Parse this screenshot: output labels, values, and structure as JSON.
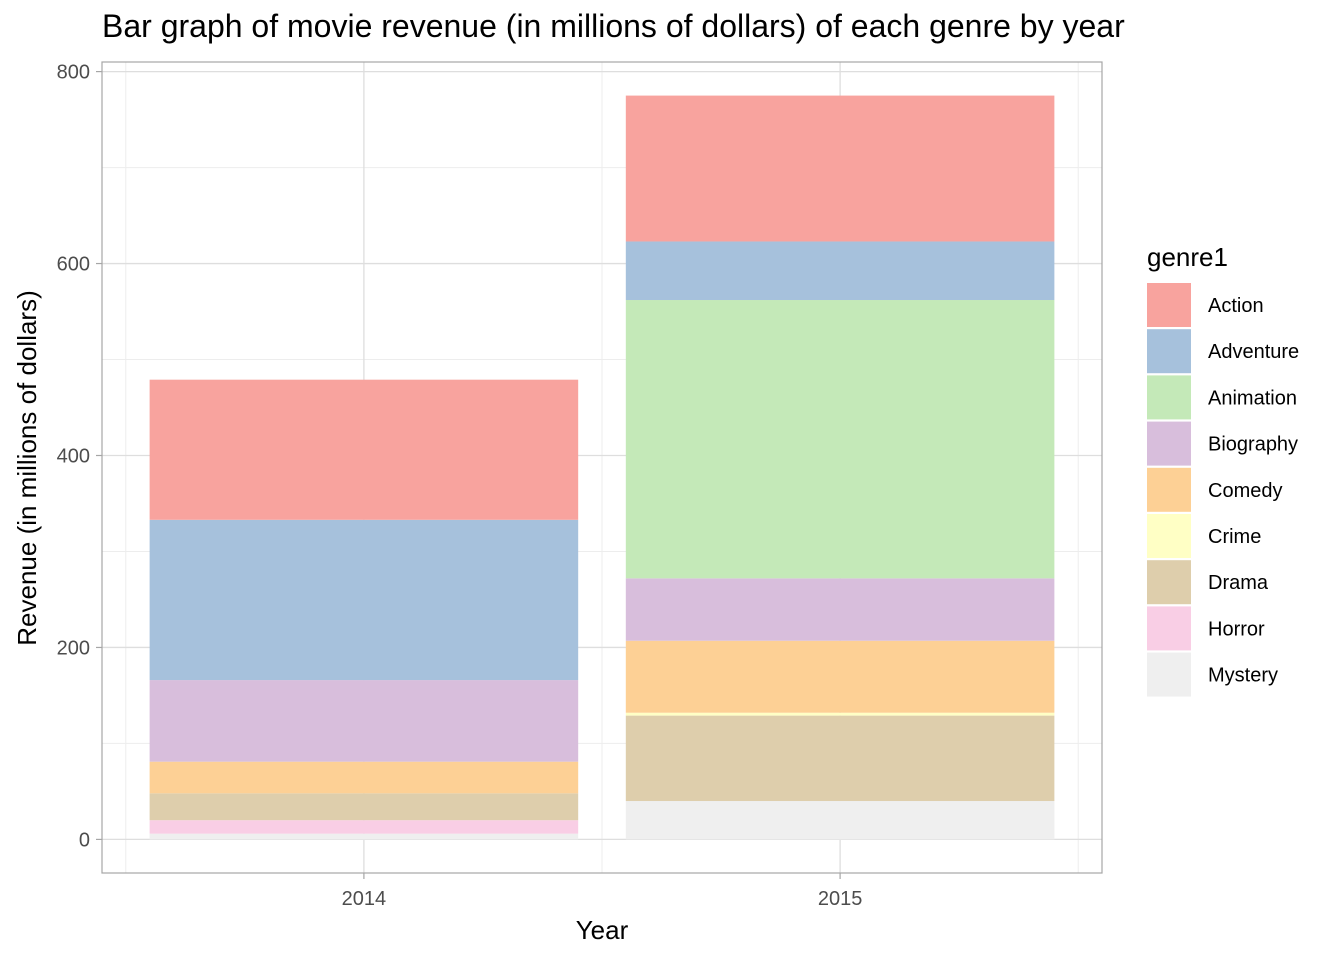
{
  "chart_data": {
    "type": "bar",
    "stacked": true,
    "title": "Bar graph of movie revenue (in millions of dollars) of each genre by year",
    "xlabel": "Year",
    "ylabel": "Revenue (in millions of dollars)",
    "categories": [
      "2014",
      "2015"
    ],
    "ylim": [
      -35,
      810
    ],
    "yticks": [
      0,
      200,
      400,
      600,
      800
    ],
    "grid": true,
    "legend_title": "genre1",
    "legend_position": "right",
    "series": [
      {
        "name": "Action",
        "color": "#F8A39E",
        "values": [
          146,
          152
        ]
      },
      {
        "name": "Adventure",
        "color": "#A6C1DC",
        "values": [
          167,
          61
        ]
      },
      {
        "name": "Animation",
        "color": "#C4E9B8",
        "values": [
          0,
          290
        ]
      },
      {
        "name": "Biography",
        "color": "#D8BEDC",
        "values": [
          85,
          65
        ]
      },
      {
        "name": "Comedy",
        "color": "#FDD095",
        "values": [
          33,
          75
        ]
      },
      {
        "name": "Crime",
        "color": "#FFFFC5",
        "values": [
          0,
          3
        ]
      },
      {
        "name": "Drama",
        "color": "#DECEAC",
        "values": [
          28,
          89
        ]
      },
      {
        "name": "Horror",
        "color": "#F9CEE5",
        "values": [
          14,
          0
        ]
      },
      {
        "name": "Mystery",
        "color": "#EFEFEF",
        "values": [
          6,
          40
        ]
      }
    ]
  }
}
